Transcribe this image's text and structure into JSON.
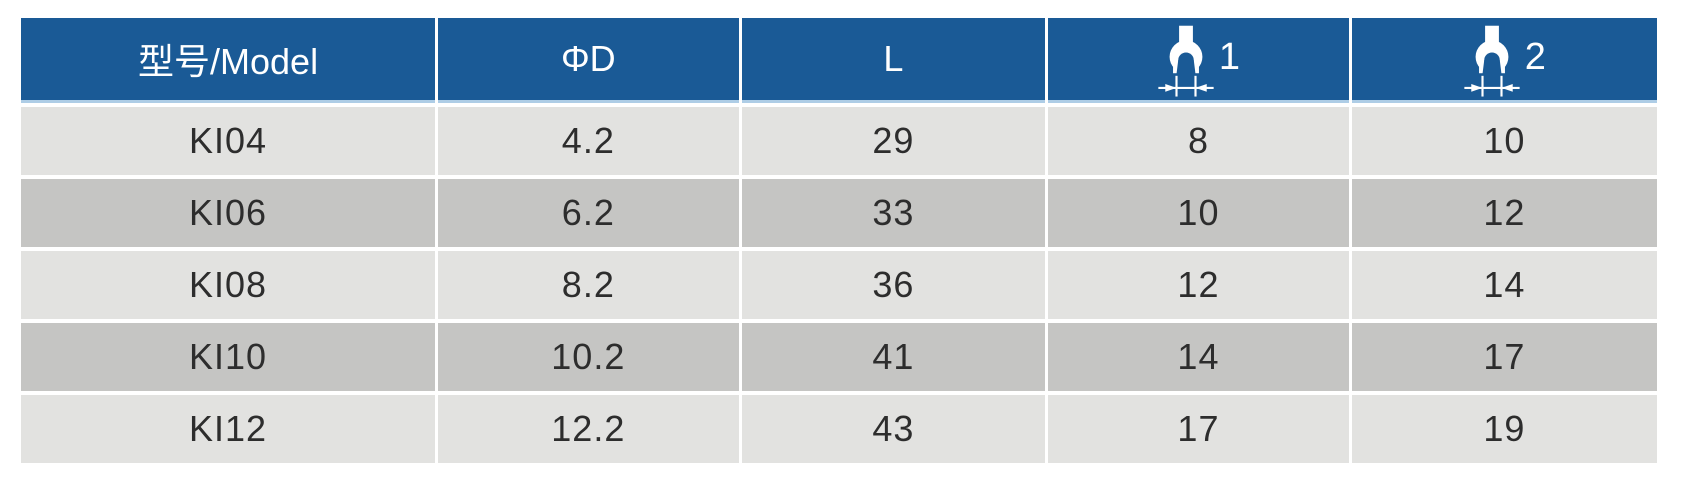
{
  "colors": {
    "header_bg": "#1a5a96",
    "header_underline": "#aecde6",
    "row_light": "#e2e2e0",
    "row_dark": "#c5c5c3",
    "cell_text": "#2d2d2d",
    "header_text": "#ffffff"
  },
  "table": {
    "headers": [
      {
        "type": "text",
        "label": "型号/Model"
      },
      {
        "type": "text",
        "label": "ΦD"
      },
      {
        "type": "text",
        "label": "L"
      },
      {
        "type": "icon",
        "icon": "open-end-wrench-icon",
        "label": "1"
      },
      {
        "type": "icon",
        "icon": "open-end-wrench-icon",
        "label": "2"
      }
    ],
    "rows": [
      [
        "KI04",
        "4.2",
        "29",
        "8",
        "10"
      ],
      [
        "KI06",
        "6.2",
        "33",
        "10",
        "12"
      ],
      [
        "KI08",
        "8.2",
        "36",
        "12",
        "14"
      ],
      [
        "KI10",
        "10.2",
        "41",
        "14",
        "17"
      ],
      [
        "KI12",
        "12.2",
        "43",
        "17",
        "19"
      ]
    ]
  }
}
